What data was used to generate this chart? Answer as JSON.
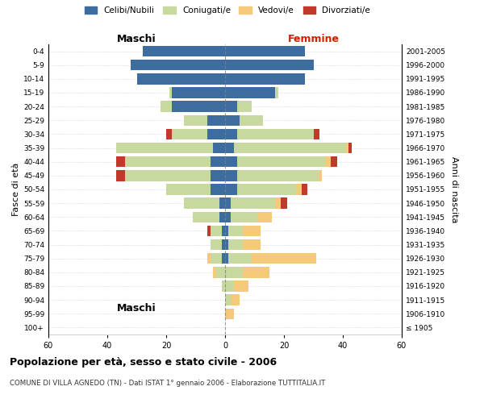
{
  "age_groups": [
    "100+",
    "95-99",
    "90-94",
    "85-89",
    "80-84",
    "75-79",
    "70-74",
    "65-69",
    "60-64",
    "55-59",
    "50-54",
    "45-49",
    "40-44",
    "35-39",
    "30-34",
    "25-29",
    "20-24",
    "15-19",
    "10-14",
    "5-9",
    "0-4"
  ],
  "birth_years": [
    "≤ 1905",
    "1906-1910",
    "1911-1915",
    "1916-1920",
    "1921-1925",
    "1926-1930",
    "1931-1935",
    "1936-1940",
    "1941-1945",
    "1946-1950",
    "1951-1955",
    "1956-1960",
    "1961-1965",
    "1966-1970",
    "1971-1975",
    "1976-1980",
    "1981-1985",
    "1986-1990",
    "1991-1995",
    "1996-2000",
    "2001-2005"
  ],
  "colors": {
    "celibe": "#3d6d9e",
    "coniugato": "#c8d9a0",
    "vedovo": "#f5c97a",
    "divorziato": "#c0392b"
  },
  "maschi": {
    "celibe": [
      0,
      0,
      0,
      0,
      0,
      1,
      1,
      1,
      2,
      2,
      5,
      5,
      5,
      4,
      6,
      6,
      18,
      18,
      30,
      32,
      28
    ],
    "coniugato": [
      0,
      0,
      0,
      1,
      3,
      4,
      4,
      4,
      9,
      12,
      15,
      29,
      29,
      33,
      12,
      8,
      4,
      1,
      0,
      0,
      0
    ],
    "vedovo": [
      0,
      0,
      0,
      0,
      1,
      1,
      0,
      0,
      0,
      0,
      0,
      0,
      0,
      0,
      0,
      0,
      0,
      0,
      0,
      0,
      0
    ],
    "divorziato": [
      0,
      0,
      0,
      0,
      0,
      0,
      0,
      1,
      0,
      0,
      0,
      3,
      3,
      0,
      2,
      0,
      0,
      0,
      0,
      0,
      0
    ]
  },
  "femmine": {
    "nubile": [
      0,
      0,
      0,
      0,
      0,
      1,
      1,
      1,
      2,
      2,
      4,
      4,
      4,
      3,
      4,
      5,
      4,
      17,
      27,
      30,
      27
    ],
    "coniugata": [
      0,
      0,
      2,
      3,
      6,
      8,
      5,
      5,
      9,
      15,
      20,
      28,
      30,
      38,
      26,
      8,
      5,
      1,
      0,
      0,
      0
    ],
    "vedova": [
      0,
      3,
      3,
      5,
      9,
      22,
      6,
      6,
      5,
      2,
      2,
      1,
      2,
      1,
      0,
      0,
      0,
      0,
      0,
      0,
      0
    ],
    "divorziata": [
      0,
      0,
      0,
      0,
      0,
      0,
      0,
      0,
      0,
      2,
      2,
      0,
      2,
      1,
      2,
      0,
      0,
      0,
      0,
      0,
      0
    ]
  },
  "xlim": 60,
  "title": "Popolazione per età, sesso e stato civile - 2006",
  "subtitle": "COMUNE DI VILLA AGNEDO (TN) - Dati ISTAT 1° gennaio 2006 - Elaborazione TUTTITALIA.IT",
  "ylabel_left": "Fasce di età",
  "ylabel_right": "Anni di nascita",
  "xlabel_maschi": "Maschi",
  "xlabel_femmine": "Femmine",
  "legend_labels": [
    "Celibi/Nubili",
    "Coniugati/e",
    "Vedovi/e",
    "Divorziati/e"
  ]
}
